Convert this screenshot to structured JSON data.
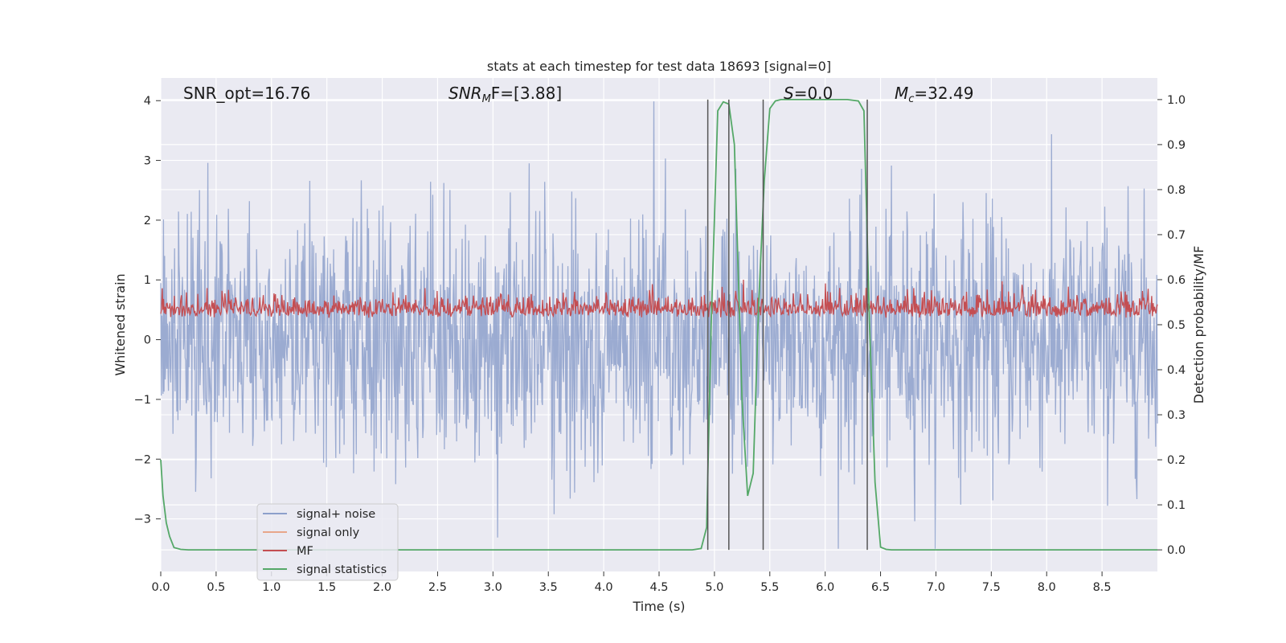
{
  "chart_data": {
    "type": "line",
    "title": "stats at each timestep for test data 18693 [signal=0]",
    "xlabel": "Time (s)",
    "ylabel": "Whitened strain",
    "y2label": "Detection probability/MF",
    "xlim": [
      0,
      9.0
    ],
    "ylim": [
      -3.88,
      4.38
    ],
    "y2lim": [
      -0.048,
      1.048
    ],
    "x_ticks": [
      "0.0",
      "0.5",
      "1.0",
      "1.5",
      "2.0",
      "2.5",
      "3.0",
      "3.5",
      "4.0",
      "4.5",
      "5.0",
      "5.5",
      "6.0",
      "6.5",
      "7.0",
      "7.5",
      "8.0",
      "8.5"
    ],
    "x_tick_values": [
      0,
      0.5,
      1,
      1.5,
      2,
      2.5,
      3,
      3.5,
      4,
      4.5,
      5,
      5.5,
      6,
      6.5,
      7,
      7.5,
      8,
      8.5
    ],
    "y_ticks": [
      "−3",
      "−2",
      "−1",
      "0",
      "1",
      "2",
      "3",
      "4"
    ],
    "y_tick_values": [
      -3,
      -2,
      -1,
      0,
      1,
      2,
      3,
      4
    ],
    "y2_ticks": [
      "0.0",
      "0.1",
      "0.2",
      "0.3",
      "0.4",
      "0.5",
      "0.6",
      "0.7",
      "0.8",
      "0.9",
      "1.0"
    ],
    "y2_tick_values": [
      0,
      0.1,
      0.2,
      0.3,
      0.4,
      0.5,
      0.6,
      0.7,
      0.8,
      0.9,
      1.0
    ],
    "grid": true,
    "annotations": {
      "snr_opt": "SNR_opt=16.76",
      "snr_mf_main": "SNR",
      "snr_mf_sub": "M",
      "snr_mf_rest": "F=[3.88]",
      "s_main": "S",
      "s_rest": "=0.0",
      "mc_main": "M",
      "mc_sub": "c",
      "mc_rest": "=32.49"
    },
    "legend": {
      "position": "lower-left",
      "entries": [
        {
          "label": "signal+ noise",
          "color": "#8da0cb"
        },
        {
          "label": "signal only",
          "color": "#e8a68a"
        },
        {
          "label": "MF",
          "color": "#c44e52"
        },
        {
          "label": "signal statistics",
          "color": "#55a868"
        }
      ]
    },
    "series": [
      {
        "name": "signal+ noise",
        "axis": "left",
        "color": "#8da0cb",
        "description": "whitened strain noise, roughly within [-3.5, 4.0]"
      },
      {
        "name": "signal only",
        "axis": "left",
        "color": "#e8a68a",
        "values": []
      },
      {
        "name": "MF",
        "axis": "right",
        "color": "#c44e52",
        "description": "matched filter output, roughly within [0.5, 0.6]"
      },
      {
        "name": "signal statistics",
        "axis": "right",
        "color": "#55a868",
        "x": [
          0.0,
          0.02,
          0.05,
          0.08,
          0.12,
          0.18,
          0.25,
          0.35,
          0.5,
          4.8,
          4.88,
          4.93,
          4.97,
          5.03,
          5.08,
          5.13,
          5.18,
          5.25,
          5.3,
          5.35,
          5.4,
          5.45,
          5.5,
          5.55,
          5.6,
          6.2,
          6.3,
          6.35,
          6.4,
          6.45,
          6.5,
          6.55,
          6.6,
          9.0
        ],
        "values": [
          0.2,
          0.12,
          0.06,
          0.03,
          0.005,
          0.001,
          0.0,
          0.0,
          0.0,
          0.0,
          0.003,
          0.05,
          0.5,
          0.975,
          0.995,
          0.99,
          0.9,
          0.33,
          0.12,
          0.17,
          0.55,
          0.82,
          0.98,
          0.997,
          1.0,
          1.0,
          0.997,
          0.975,
          0.5,
          0.15,
          0.006,
          0.001,
          0.0,
          0.0
        ]
      }
    ],
    "vertical_lines_x": [
      4.94,
      5.13,
      5.44,
      6.38
    ]
  }
}
